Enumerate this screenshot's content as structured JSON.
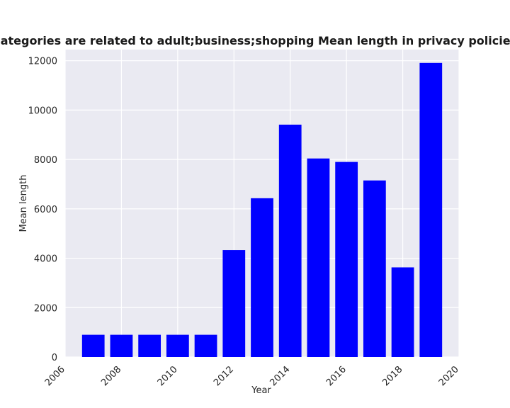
{
  "chart_data": {
    "type": "bar",
    "title": "when categories are related to adult;business;shopping Mean length in privacy policies by Year",
    "xlabel": "Year",
    "ylabel": "Mean length",
    "x": [
      2007,
      2008,
      2009,
      2010,
      2011,
      2012,
      2013,
      2014,
      2015,
      2016,
      2017,
      2018,
      2019
    ],
    "values": [
      900,
      900,
      900,
      900,
      900,
      4330,
      6430,
      9410,
      8040,
      7900,
      7150,
      3630,
      11910
    ],
    "xlim": [
      2006,
      2020
    ],
    "ylim": [
      0,
      12450
    ],
    "xticks": [
      2006,
      2008,
      2010,
      2012,
      2014,
      2016,
      2018,
      2020
    ],
    "yticks": [
      0,
      2000,
      4000,
      6000,
      8000,
      10000,
      12000
    ],
    "bar_color": "#0000ff",
    "background_color": "#eaeaf2",
    "grid": true,
    "legend": false
  }
}
